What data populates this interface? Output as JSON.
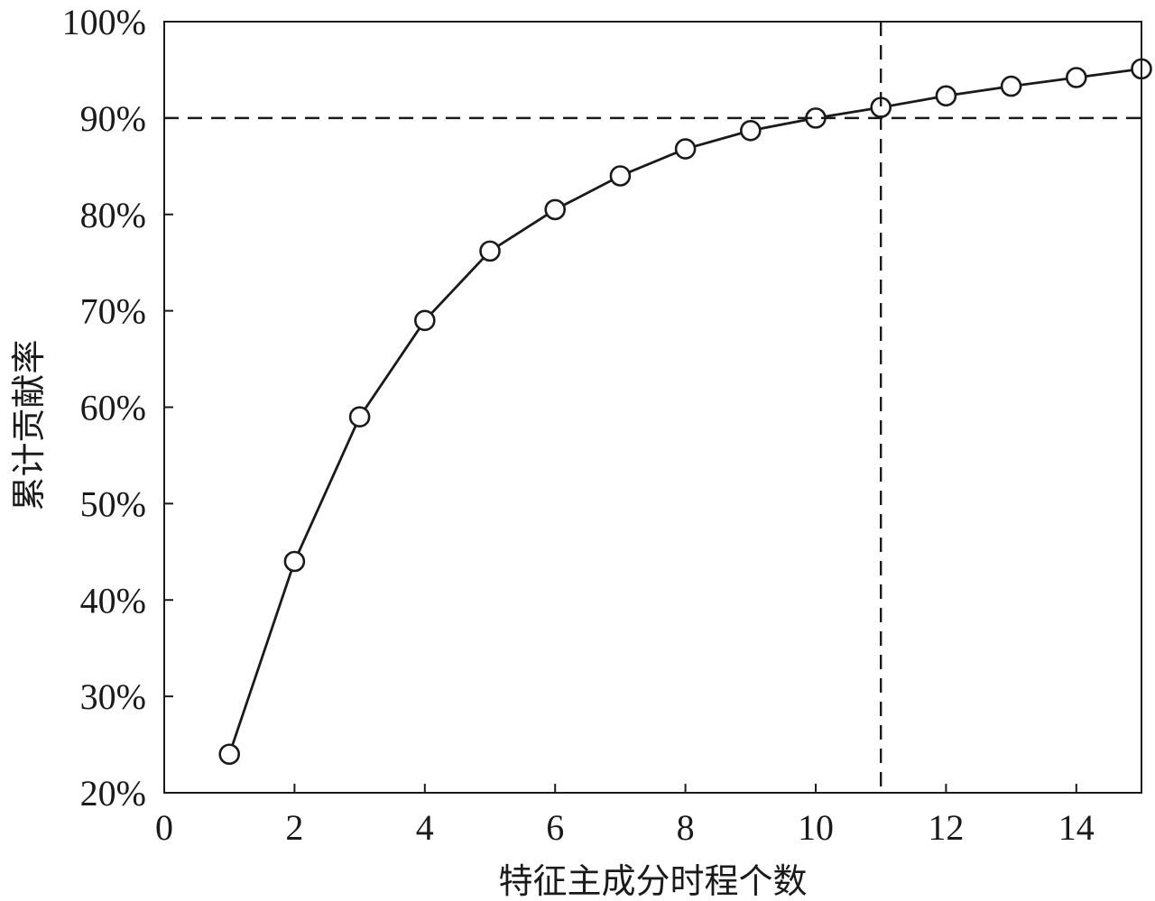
{
  "chart_data": {
    "type": "line",
    "title": "",
    "xlabel": "特征主成分时程个数",
    "ylabel": "累计贡献率",
    "xlim": [
      0,
      15
    ],
    "ylim": [
      20,
      100
    ],
    "x_ticks": [
      0,
      2,
      4,
      6,
      8,
      10,
      12,
      14
    ],
    "x_tick_labels": [
      "0",
      "2",
      "4",
      "6",
      "8",
      "10",
      "12",
      "14"
    ],
    "y_ticks": [
      20,
      30,
      40,
      50,
      60,
      70,
      80,
      90,
      100
    ],
    "y_tick_labels": [
      "20%",
      "30%",
      "40%",
      "50%",
      "60%",
      "70%",
      "80%",
      "90%",
      "100%"
    ],
    "grid": false,
    "marker": "open-circle",
    "series": [
      {
        "x": [
          1,
          2,
          3,
          4,
          5,
          6,
          7,
          8,
          9,
          10,
          11,
          12,
          13,
          14,
          15
        ],
        "values": [
          24.0,
          44.0,
          59.0,
          69.0,
          76.2,
          80.5,
          84.0,
          86.8,
          88.7,
          90.0,
          91.1,
          92.3,
          93.3,
          94.2,
          95.1
        ]
      }
    ],
    "reference_lines": [
      {
        "orientation": "horizontal",
        "value": 90,
        "style": "dashed"
      },
      {
        "orientation": "vertical",
        "value": 11,
        "style": "dashed"
      }
    ],
    "colors": {
      "line": "#1a1a1a",
      "marker_fill": "#ffffff"
    }
  }
}
